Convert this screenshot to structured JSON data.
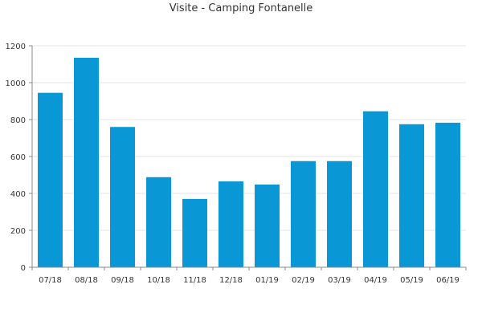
{
  "chart_data": {
    "type": "bar",
    "title": "Visite - Camping Fontanelle",
    "xlabel": "",
    "ylabel": "",
    "categories": [
      "07/18",
      "08/18",
      "09/18",
      "10/18",
      "11/18",
      "12/18",
      "01/19",
      "02/19",
      "03/19",
      "04/19",
      "05/19",
      "06/19"
    ],
    "values": [
      945,
      1135,
      760,
      488,
      370,
      465,
      448,
      575,
      575,
      845,
      775,
      783
    ],
    "ylim": [
      0,
      1200
    ],
    "yticks": [
      0,
      200,
      400,
      600,
      800,
      1000,
      1200
    ],
    "grid": true,
    "legend": "none",
    "bar_color": "#0a97d6",
    "grid_color": "#e3e3e3",
    "axis_color": "#888888"
  }
}
